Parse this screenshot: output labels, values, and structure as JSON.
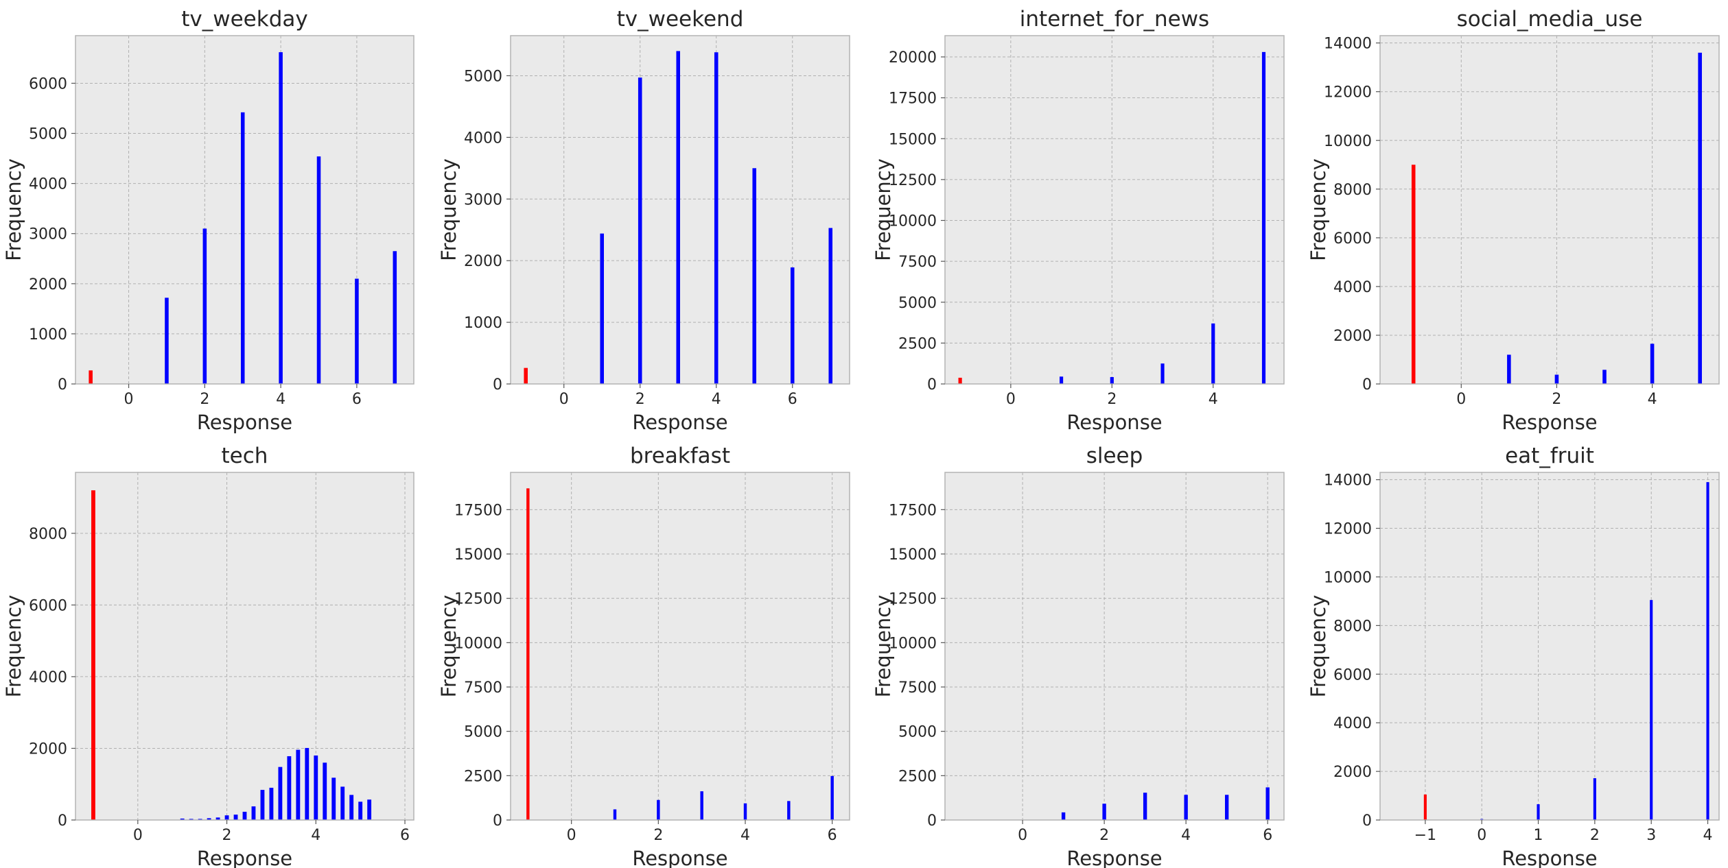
{
  "chart_data": [
    {
      "type": "bar",
      "title": "tv_weekday",
      "xlabel": "Response",
      "ylabel": "Frequency",
      "xlim": [
        -1.4,
        7.5
      ],
      "ylim": [
        0,
        6950
      ],
      "xticks": [
        0,
        2,
        4,
        6
      ],
      "yticks": [
        0,
        1000,
        2000,
        3000,
        4000,
        5000,
        6000
      ],
      "grid": true,
      "bar_width": 0.1,
      "series": [
        {
          "color": "#ff0000",
          "points": [
            [
              -1,
              270
            ]
          ]
        },
        {
          "color": "#0000ff",
          "points": [
            [
              1,
              1720
            ],
            [
              2,
              3100
            ],
            [
              3,
              5420
            ],
            [
              4,
              6620
            ],
            [
              5,
              4540
            ],
            [
              6,
              2100
            ],
            [
              7,
              2650
            ]
          ]
        }
      ]
    },
    {
      "type": "bar",
      "title": "tv_weekend",
      "xlabel": "Response",
      "ylabel": "Frequency",
      "xlim": [
        -1.4,
        7.5
      ],
      "ylim": [
        0,
        5650
      ],
      "xticks": [
        0,
        2,
        4,
        6
      ],
      "yticks": [
        0,
        1000,
        2000,
        3000,
        4000,
        5000
      ],
      "grid": true,
      "bar_width": 0.1,
      "series": [
        {
          "color": "#ff0000",
          "points": [
            [
              -1,
              260
            ]
          ]
        },
        {
          "color": "#0000ff",
          "points": [
            [
              1,
              2440
            ],
            [
              2,
              4970
            ],
            [
              3,
              5400
            ],
            [
              4,
              5380
            ],
            [
              5,
              3500
            ],
            [
              6,
              1890
            ],
            [
              7,
              2530
            ]
          ]
        }
      ]
    },
    {
      "type": "bar",
      "title": "internet_for_news",
      "xlabel": "Response",
      "ylabel": "Frequency",
      "xlim": [
        -1.3,
        5.4
      ],
      "ylim": [
        0,
        21300
      ],
      "xticks": [
        0,
        2,
        4
      ],
      "yticks": [
        0,
        2500,
        5000,
        7500,
        10000,
        12500,
        15000,
        17500,
        20000
      ],
      "grid": true,
      "bar_width": 0.07,
      "series": [
        {
          "color": "#ff0000",
          "points": [
            [
              -1,
              380
            ]
          ]
        },
        {
          "color": "#0000ff",
          "points": [
            [
              1,
              450
            ],
            [
              2,
              420
            ],
            [
              3,
              1250
            ],
            [
              4,
              3700
            ],
            [
              5,
              20300
            ]
          ]
        }
      ]
    },
    {
      "type": "bar",
      "title": "social_media_use",
      "xlabel": "Response",
      "ylabel": "Frequency",
      "xlim": [
        -1.7,
        5.4
      ],
      "ylim": [
        0,
        14300
      ],
      "xticks": [
        0,
        2,
        4
      ],
      "yticks": [
        0,
        2000,
        4000,
        6000,
        8000,
        10000,
        12000,
        14000
      ],
      "grid": true,
      "bar_width": 0.08,
      "series": [
        {
          "color": "#ff0000",
          "points": [
            [
              -1,
              9000
            ]
          ]
        },
        {
          "color": "#0000ff",
          "points": [
            [
              1,
              1200
            ],
            [
              2,
              380
            ],
            [
              3,
              580
            ],
            [
              4,
              1650
            ],
            [
              5,
              13600
            ]
          ]
        }
      ]
    },
    {
      "type": "bar",
      "title": "tech",
      "xlabel": "Response",
      "ylabel": "Frequency",
      "xlim": [
        -1.4,
        6.2
      ],
      "ylim": [
        0,
        9700
      ],
      "xticks": [
        0,
        2,
        4,
        6
      ],
      "yticks": [
        0,
        2000,
        4000,
        6000,
        8000
      ],
      "grid": true,
      "bar_width": 0.09,
      "series": [
        {
          "color": "#ff0000",
          "points": [
            [
              -1,
              9200
            ]
          ]
        },
        {
          "color": "#0000ff",
          "points": [
            [
              1,
              40
            ],
            [
              1.2,
              30
            ],
            [
              1.4,
              30
            ],
            [
              1.6,
              50
            ],
            [
              1.8,
              70
            ],
            [
              2,
              130
            ],
            [
              2.2,
              150
            ],
            [
              2.4,
              230
            ],
            [
              2.6,
              380
            ],
            [
              2.8,
              840
            ],
            [
              3,
              900
            ],
            [
              3.2,
              1480
            ],
            [
              3.4,
              1780
            ],
            [
              3.6,
              1960
            ],
            [
              3.8,
              2010
            ],
            [
              4,
              1800
            ],
            [
              4.2,
              1600
            ],
            [
              4.4,
              1180
            ],
            [
              4.6,
              930
            ],
            [
              4.8,
              700
            ],
            [
              5,
              510
            ],
            [
              5.2,
              570
            ]
          ]
        }
      ]
    },
    {
      "type": "bar",
      "title": "breakfast",
      "xlabel": "Response",
      "ylabel": "Frequency",
      "xlim": [
        -1.4,
        6.4
      ],
      "ylim": [
        0,
        19600
      ],
      "xticks": [
        0,
        2,
        4,
        6
      ],
      "yticks": [
        0,
        2500,
        5000,
        7500,
        10000,
        12500,
        15000,
        17500
      ],
      "grid": true,
      "bar_width": 0.07,
      "series": [
        {
          "color": "#ff0000",
          "points": [
            [
              -1,
              18700
            ]
          ]
        },
        {
          "color": "#0000ff",
          "points": [
            [
              1,
              600
            ],
            [
              2,
              1130
            ],
            [
              3,
              1620
            ],
            [
              4,
              940
            ],
            [
              5,
              1070
            ],
            [
              6,
              2480
            ]
          ]
        }
      ]
    },
    {
      "type": "bar",
      "title": "sleep",
      "xlabel": "Response",
      "ylabel": "Frequency",
      "xlim": [
        -1.9,
        6.4
      ],
      "ylim": [
        0,
        19600
      ],
      "xticks": [
        0,
        2,
        4,
        6
      ],
      "yticks": [
        0,
        2500,
        5000,
        7500,
        10000,
        12500,
        15000,
        17500
      ],
      "grid": true,
      "bar_width": 0.09,
      "series": [
        {
          "color": "#0000ff",
          "points": [
            [
              1,
              430
            ],
            [
              2,
              920
            ],
            [
              3,
              1540
            ],
            [
              4,
              1420
            ],
            [
              5,
              1420
            ],
            [
              6,
              1840
            ]
          ]
        }
      ]
    },
    {
      "type": "bar",
      "title": "eat_fruit",
      "xlabel": "Response",
      "ylabel": "Frequency",
      "xlim": [
        -1.8,
        4.2
      ],
      "ylim": [
        0,
        14300
      ],
      "xticks": [
        -1,
        0,
        1,
        2,
        3,
        4
      ],
      "yticks": [
        0,
        2000,
        4000,
        6000,
        8000,
        10000,
        12000,
        14000
      ],
      "grid": true,
      "bar_width": 0.05,
      "series": [
        {
          "color": "#ff0000",
          "points": [
            [
              -1,
              1050
            ]
          ]
        },
        {
          "color": "#0000ff",
          "points": [
            [
              0,
              40
            ],
            [
              1,
              650
            ],
            [
              2,
              1720
            ],
            [
              3,
              9050
            ],
            [
              4,
              13900
            ]
          ]
        }
      ]
    }
  ]
}
